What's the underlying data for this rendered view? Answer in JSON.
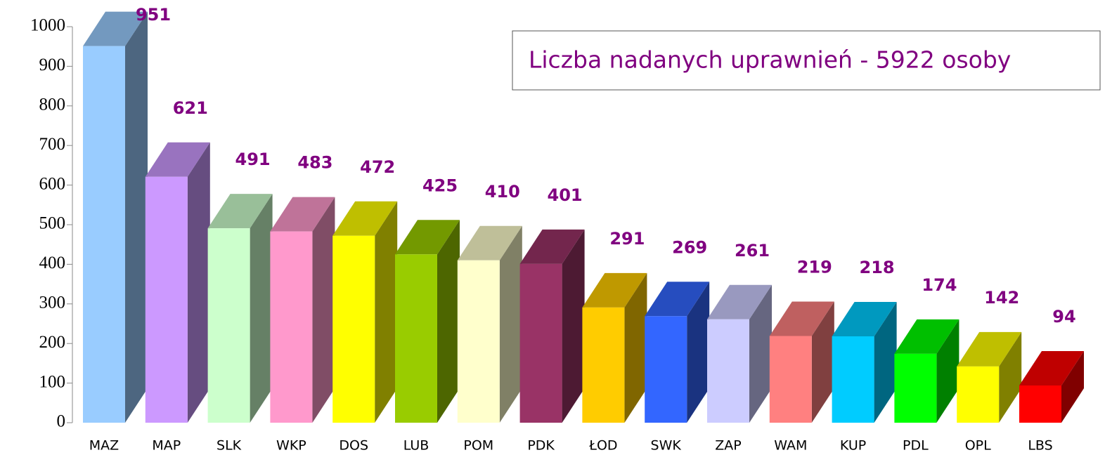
{
  "chart_data": {
    "type": "bar3d",
    "title": "Liczba nadanych uprawnień - 5922 osoby",
    "categories": [
      "MAZ",
      "MAP",
      "SLK",
      "WKP",
      "DOS",
      "LUB",
      "POM",
      "PDK",
      "ŁOD",
      "SWK",
      "ZAP",
      "WAM",
      "KUP",
      "PDL",
      "OPL",
      "LBS"
    ],
    "values": [
      951,
      621,
      491,
      483,
      472,
      425,
      410,
      401,
      291,
      269,
      261,
      219,
      218,
      174,
      142,
      94
    ],
    "colors": [
      "#99ccff",
      "#cc99ff",
      "#ccffcc",
      "#ff99cc",
      "#ffff00",
      "#99cc00",
      "#ffffcc",
      "#993366",
      "#ffcc00",
      "#3366ff",
      "#ccccff",
      "#ff8080",
      "#00ccff",
      "#00ff00",
      "#ffff00",
      "#ff0000"
    ],
    "label_color": "#800080",
    "ylim": [
      0,
      1000
    ],
    "yticks": [
      0,
      100,
      200,
      300,
      400,
      500,
      600,
      700,
      800,
      900,
      1000
    ]
  }
}
